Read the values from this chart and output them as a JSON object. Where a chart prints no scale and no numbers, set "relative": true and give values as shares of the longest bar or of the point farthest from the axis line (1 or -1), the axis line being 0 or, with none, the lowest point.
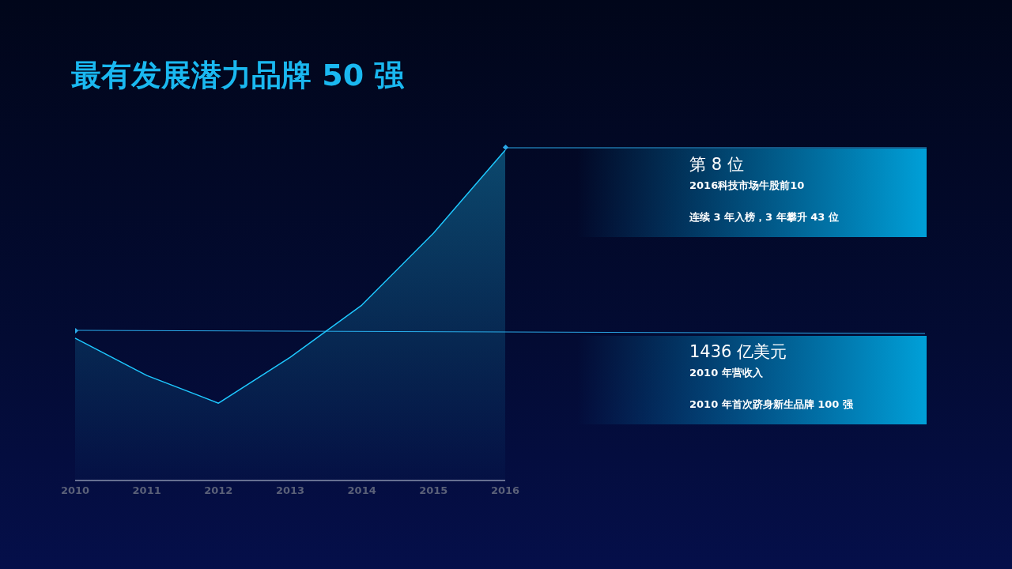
{
  "chart_data": {
    "type": "area",
    "title": "最有发展潜力品牌 50 强",
    "categories": [
      "2010",
      "2011",
      "2012",
      "2013",
      "2014",
      "2015",
      "2016"
    ],
    "relative": true,
    "series": [
      {
        "color": "#1ec8ff",
        "values": [
          0.431,
          0.318,
          0.234,
          0.373,
          0.531,
          0.749,
          1
        ]
      }
    ],
    "annotations": [
      "第 8 位",
      "2016科技市场牛股前10",
      "连续 3 年入榜，3 年攀升 43 位",
      "1436 亿美元",
      "2010 年营收入",
      "2010 年首次跻身新生品牌 100 强"
    ]
  }
}
